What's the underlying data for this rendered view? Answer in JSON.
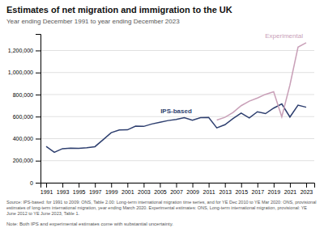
{
  "chart_data": {
    "type": "line",
    "title": "Estimates of net migration and immigration to the UK",
    "subtitle": "Year ending December 1991 to year ending December 2023",
    "source": "Source: IPS-based: for 1991 to 2009: ONS, Table 2.00: Long-term international migration time series, and for YE Dec 2010 to YE Mar 2020: ONS, provisional\nestimates of long-term international migration, year ending March 2020. Experimental estimates: ONS, Long-term international migration, provisional: YE\nJune 2012 to YE June 2023, Table 1.",
    "note": "Note: Both IPS and experimental estimates come with substantial uncertainty.",
    "x": [
      1991,
      1992,
      1993,
      1994,
      1995,
      1996,
      1997,
      1998,
      1999,
      2000,
      2001,
      2002,
      2003,
      2004,
      2005,
      2006,
      2007,
      2008,
      2009,
      2010,
      2011,
      2012,
      2013,
      2014,
      2015,
      2016,
      2017,
      2018,
      2019,
      2020,
      2021,
      2022,
      2023
    ],
    "series": [
      {
        "name": "IPS-based",
        "color": "#2e3f6f",
        "values": [
          329000,
          276000,
          309000,
          314000,
          311000,
          318000,
          327000,
          390000,
          454000,
          479000,
          480000,
          513000,
          511000,
          533000,
          549000,
          564000,
          574000,
          590000,
          567000,
          591000,
          593000,
          498000,
          526000,
          583000,
          632000,
          588000,
          644000,
          627000,
          677000,
          715000,
          596000,
          704000,
          685000
        ]
      },
      {
        "name": "Experimental",
        "color": "#c9a0b8",
        "values": [
          null,
          null,
          null,
          null,
          null,
          null,
          null,
          null,
          null,
          null,
          null,
          null,
          null,
          null,
          null,
          null,
          null,
          null,
          null,
          null,
          null,
          568000,
          593000,
          637000,
          699000,
          740000,
          769000,
          802000,
          826000,
          598000,
          886000,
          1230000,
          1270000
        ]
      }
    ],
    "xlim": [
      1990.3,
      2024.0
    ],
    "xticks": [
      1991,
      1993,
      1995,
      1997,
      1999,
      2001,
      2003,
      2005,
      2007,
      2009,
      2011,
      2013,
      2015,
      2017,
      2019,
      2021,
      2023
    ],
    "ylim": [
      0,
      1350000
    ],
    "yticks": [
      0,
      {
        "value": 200000,
        "label": "200,000"
      },
      {
        "value": 400000,
        "label": "400,000"
      },
      {
        "value": 600000,
        "label": "600,000"
      },
      {
        "value": 800000,
        "label": "800,000"
      },
      {
        "value": 1000000,
        "label": "1,000,000"
      },
      {
        "value": 1200000,
        "label": "1,200,000"
      }
    ],
    "grid": true
  }
}
